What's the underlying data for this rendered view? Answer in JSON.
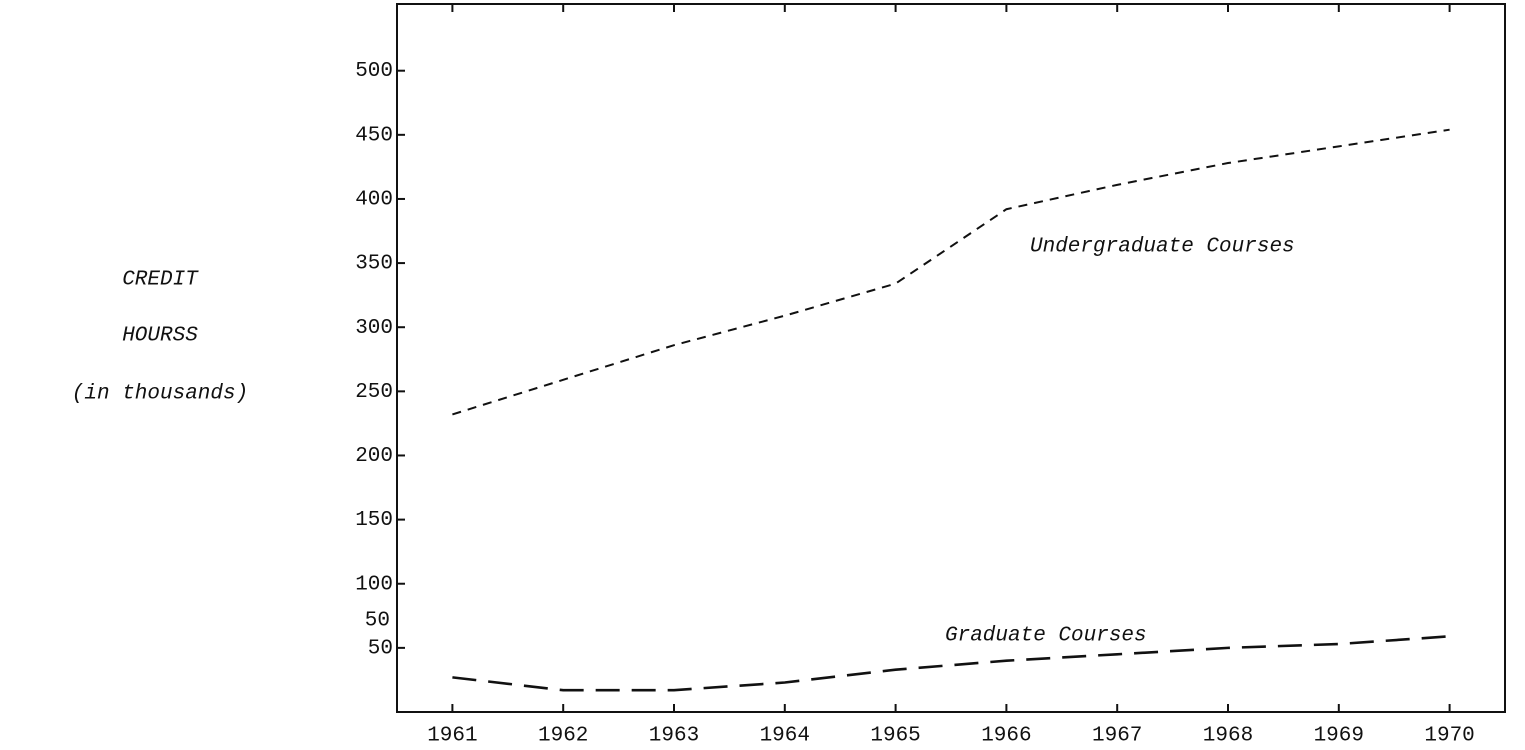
{
  "chart_data": {
    "type": "line",
    "y_label": [
      "CREDIT",
      "HOURSS",
      "(in thousands)"
    ],
    "x": [
      1961,
      1962,
      1963,
      1964,
      1965,
      1966,
      1967,
      1968,
      1969,
      1970
    ],
    "xlim": [
      1960.5,
      1970.5
    ],
    "xticks": [
      1961,
      1962,
      1963,
      1964,
      1965,
      1966,
      1967,
      1968,
      1969,
      1970
    ],
    "ylim": [
      0,
      552
    ],
    "yticks": [
      50,
      100,
      150,
      200,
      250,
      300,
      350,
      400,
      450,
      500
    ],
    "annotations": [
      "50"
    ],
    "series": [
      {
        "name": "Undergraduate Courses",
        "color": "#111111",
        "values": [
          232,
          259,
          286,
          309,
          334,
          392,
          411,
          428,
          441,
          454
        ]
      },
      {
        "name": "Graduate Courses",
        "color": "#111111",
        "values": [
          27,
          17,
          17,
          23,
          33,
          40,
          45,
          50,
          53,
          59
        ]
      }
    ]
  }
}
